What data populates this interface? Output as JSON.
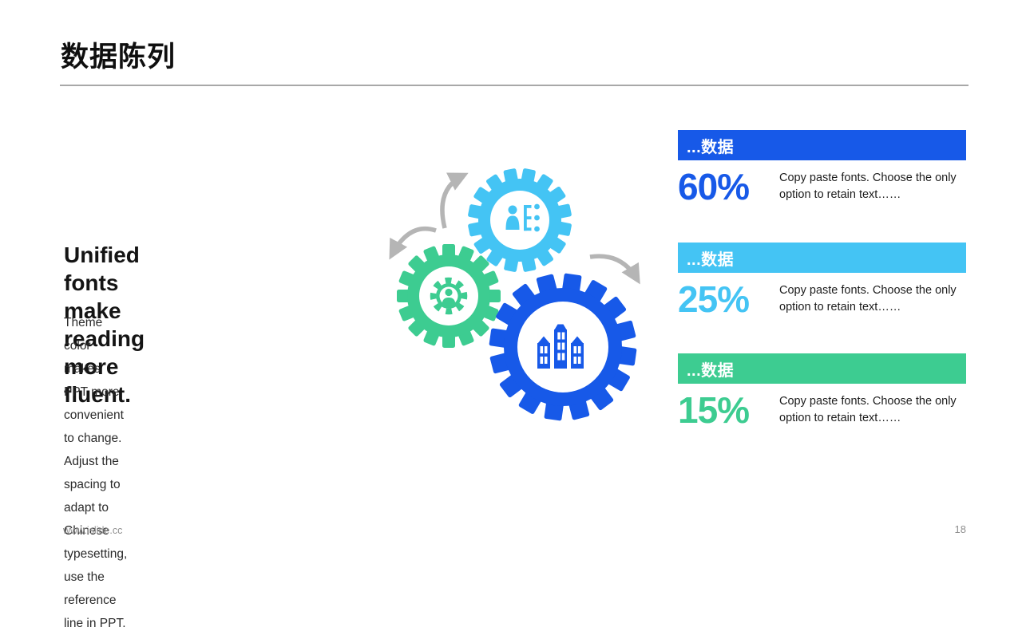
{
  "slide": {
    "title": "数据陈列",
    "left_panel": {
      "heading_lines": [
        "Unified fonts make",
        "reading more fluent."
      ],
      "body_lines": [
        "Theme color makes PPT more convenient to change.",
        "Adjust the spacing to adapt to Chinese typesetting,",
        "use the reference line in PPT."
      ]
    },
    "illustration": {
      "description": "three meshed gears with rotation arrows",
      "gear_icons": [
        "user-list-icon",
        "user-gear-icon",
        "city-buildings-icon"
      ],
      "colors": {
        "light_blue_gear": "#44C4F4",
        "green_gear": "#3DCC91",
        "blue_gear": "#1759E8",
        "arrow_gray": "#B5B5B5"
      }
    },
    "data_blocks": [
      {
        "header": "...数据",
        "percent": "60%",
        "description": "Copy paste fonts. Choose the only option to retain text……",
        "accent": "#1759E8"
      },
      {
        "header": "...数据",
        "percent": "25%",
        "description": "Copy paste fonts. Choose the only option to retain text……",
        "accent": "#44C4F4"
      },
      {
        "header": "...数据",
        "percent": "15%",
        "description": "Copy paste fonts. Choose the only option to retain text……",
        "accent": "#3DCC91"
      }
    ],
    "footer": {
      "website": "www.islide.cc",
      "page_number": "18"
    }
  }
}
